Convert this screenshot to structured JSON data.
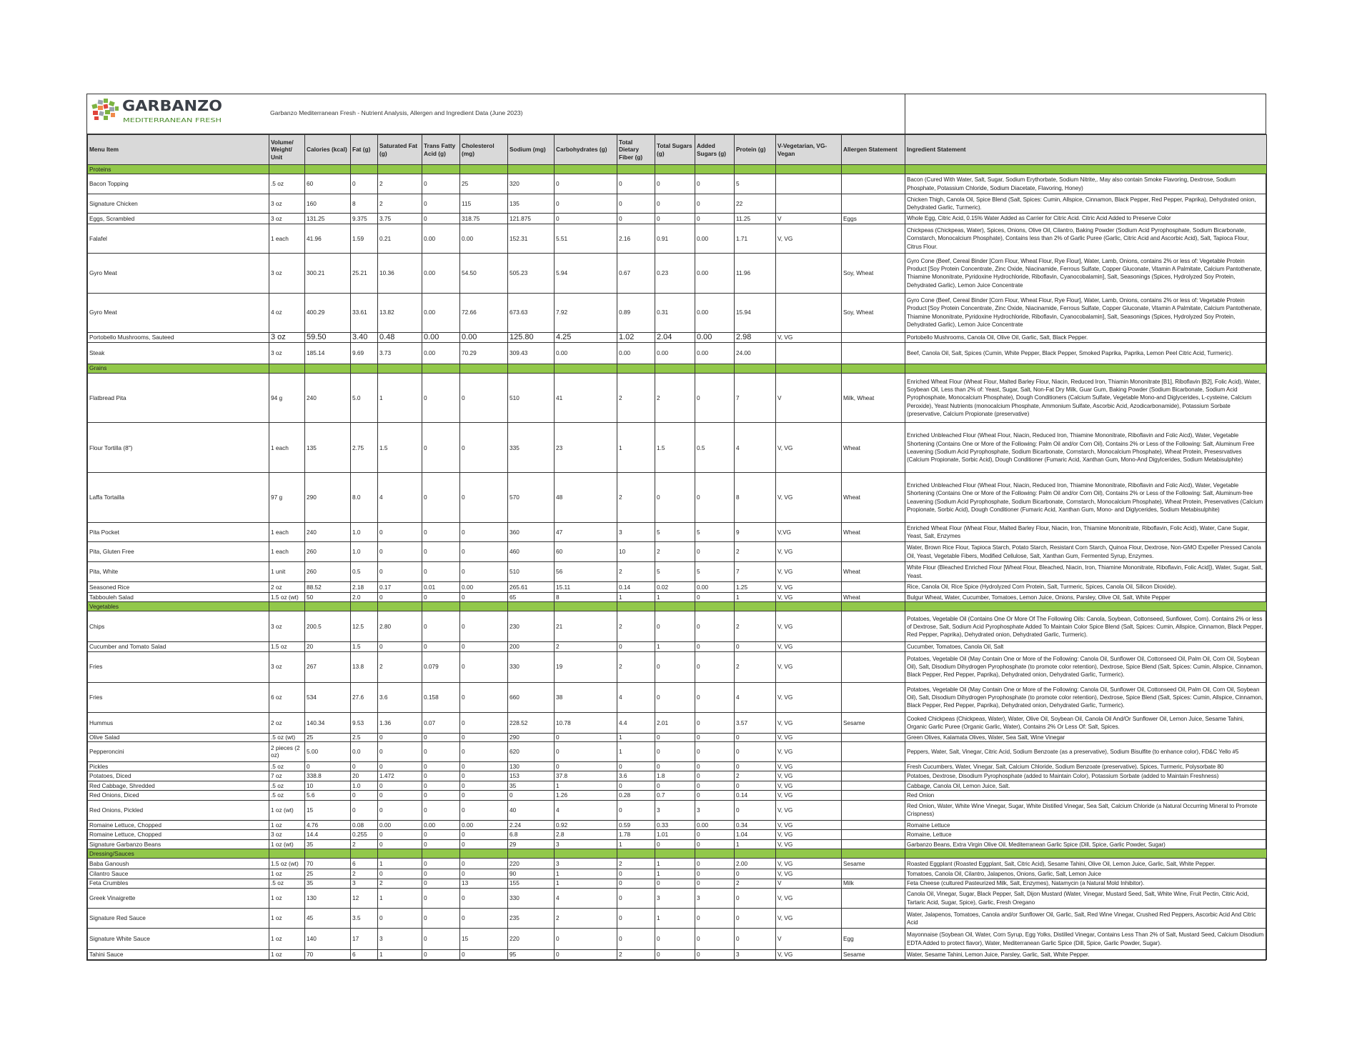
{
  "logo": {
    "brand": "GARBANZO",
    "tagline": "MEDITERRANEAN FRESH",
    "colors": {
      "dark": "#3a3f47",
      "green": "#7cb342",
      "orange": "#f08a4b",
      "red": "#e0453c",
      "gray": "#9aa4ad"
    }
  },
  "document_title": "Garbanzo Mediterranean Fresh - Nutrient Analysis, Allergen and Ingredient Data (June 2023)",
  "colors": {
    "header_bg": "#d9d9d9",
    "section_bg": "#92c84a"
  },
  "columns": [
    "Menu Item",
    "Volume/ Weight/ Unit",
    "Calories (kcal)",
    "Fat (g)",
    "Saturated Fat (g)",
    "Trans Fatty Acid (g)",
    "Cholesterol (mg)",
    "Sodium (mg)",
    "Carbohydrates (g)",
    "Total Dietary Fiber (g)",
    "Total Sugars (g)",
    "Added Sugars (g)",
    "Protein (g)",
    "V-Vegetarian, VG-Vegan",
    "Allergen Statement",
    "Ingredient Statement"
  ],
  "sections": [
    {
      "name": "Proteins",
      "rows": [
        [
          "Bacon Topping",
          ".5 oz",
          "60",
          "0",
          "2",
          "0",
          "25",
          "320",
          "0",
          "0",
          "0",
          "0",
          "5",
          "",
          "",
          "Bacon (Cured With Water, Salt, Sugar, Sodium Erythorbate, Sodium Nitrite,. May also contain Smoke Flavoring, Dextrose, Sodium Phosphate, Potassium Chloride, Sodium Diacetate, Flavoring, Honey)"
        ],
        [
          "Signature Chicken",
          "3 oz",
          "160",
          "8",
          "2",
          "0",
          "115",
          "135",
          "0",
          "0",
          "0",
          "0",
          "22",
          "",
          "",
          "Chicken Thigh, Canola Oil, Spice Blend (Salt, Spices: Cumin, Allspice, Cinnamon, Black Pepper, Red Pepper, Paprika), Dehydrated onion, Dehydrated Garlic, Turmeric)."
        ],
        [
          "Eggs, Scrambled",
          "3 oz",
          "131.25",
          "9.375",
          "3.75",
          "0",
          "318.75",
          "121.875",
          "0",
          "0",
          "0",
          "0",
          "11.25",
          "V",
          "Eggs",
          "Whole Egg, Citric Acid, 0.15% Water Added as Carrier for Citric Acid. Citric Acid Added to Preserve Color"
        ],
        [
          "Falafel",
          "1 each",
          "41.96",
          "1.59",
          "0.21",
          "0.00",
          "0.00",
          "152.31",
          "5.51",
          "2.16",
          "0.91",
          "0.00",
          "1.71",
          "V, VG",
          "",
          "Chickpeas (Chickpeas, Water), Spices, Onions, Olive Oil, Cilantro, Baking Powder (Sodium Acid Pyrophosphate, Sodium Bicarbonate, Cornstarch, Monocalcium Phosphate), Contains less than 2% of Garlic Puree (Garlic, Citric Acid and Ascorbic Acid), Salt, Tapioca Flour, Citrus Flour."
        ],
        [
          "Gyro Meat",
          "3 oz",
          "300.21",
          "25.21",
          "10.36",
          "0.00",
          "54.50",
          "505.23",
          "5.94",
          "0.67",
          "0.23",
          "0.00",
          "11.96",
          "",
          "Soy, Wheat",
          "Gyro Cone (Beef, Cereal Binder [Corn Flour, Wheat Flour, Rye Flour], Water, Lamb, Onions, contains 2% or less of: Vegetable Protein Product [Soy Protein Concentrate, Zinc Oxide, Niacinamide, Ferrous Sulfate, Copper Gluconate, Vitamin A Palmitate, Calcium Pantothenate, Thiamine Mononitrate, Pyridoxine Hydrochloride, Riboflavin, Cyanocobalamin], Salt, Seasonings (Spices, Hydrolyzed Soy Protein, Dehydrated Garlic), Lemon Juice Concentrate"
        ],
        [
          "Gyro Meat",
          "4 oz",
          "400.29",
          "33.61",
          "13.82",
          "0.00",
          "72.66",
          "673.63",
          "7.92",
          "0.89",
          "0.31",
          "0.00",
          "15.94",
          "",
          "Soy, Wheat",
          "Gyro Cone (Beef, Cereal Binder [Corn Flour, Wheat Flour, Rye Flour], Water, Lamb, Onions, contains 2% or less of: Vegetable Protein Product [Soy Protein Concentrate, Zinc Oxide, Niacinamide, Ferrous Sulfate, Copper Gluconate, Vitamin A Palmitate, Calcium Pantothenate, Thiamine Mononitrate, Pyridoxine Hydrochloride, Riboflavin, Cyanocobalamin], Salt, Seasonings (Spices, Hydrolyzed Soy Protein, Dehydrated Garlic), Lemon Juice Concentrate"
        ],
        [
          "Portobello Mushrooms, Sauteed",
          "3 oz",
          "59.50",
          "3.40",
          "0.48",
          "0.00",
          "0.00",
          "125.80",
          "4.25",
          "1.02",
          "2.04",
          "0.00",
          "2.98",
          "V, VG",
          "",
          "Portobello Mushrooms, Canola Oil, Olive Oil, Garlic, Salt, Black Pepper."
        ],
        [
          "Steak",
          "3 oz",
          "185.14",
          "9.69",
          "3.73",
          "0.00",
          "70.29",
          "309.43",
          "0.00",
          "0.00",
          "0.00",
          "0.00",
          "24.00",
          "",
          "",
          "Beef, Canola Oil, Salt, Spices (Cumin, White Pepper, Black Pepper, Smoked Paprika, Paprika, Lemon Peel Citric Acid, Turmeric)."
        ]
      ]
    },
    {
      "name": "Grains",
      "rows": [
        [
          "Flatbread Pita",
          "94 g",
          "240",
          "5.0",
          "1",
          "0",
          "0",
          "510",
          "41",
          "2",
          "2",
          "0",
          "7",
          "V",
          "Milk, Wheat",
          "Enriched Wheat Flour (Wheat Flour, Malted Barley Flour, Niacin, Reduced Iron, Thiamin Mononitrate [B1], Riboflavin [B2], Folic Acid), Water, Soybean Oil, Less than 2% of: Yeast, Sugar, Salt, Non-Fat Dry Milk, Guar Gum, Baking Powder (Sodium Bicarbonate, Sodium Acid Pyrophosphate, Monocalcium Phosphate), Dough Conditioners (Calcium Sulfate, Vegetable Mono-and Diglycerides, L-cysteine, Calcium Peroxide), Yeast Nutrients (monocalcium Phosphate, Ammonium Sulfate, Ascorbic Acid, Azodicarbonamide), Potassium Sorbate (preservative, Calcium Propionate (preservative)"
        ],
        [
          "Flour Tortilla (8\")",
          "1 each",
          "135",
          "2.75",
          "1.5",
          "0",
          "0",
          "335",
          "23",
          "1",
          "1.5",
          "0.5",
          "4",
          "V, VG",
          "Wheat",
          "Enriched Unbleached Flour (Wheat Flour, Niacin, Reduced Iron, Thiamine Mononitrate, Riboflavin and Folic Aicd), Water, Vegetable Shortening (Contains One or More of the Following: Palm Oil and/or Corn Oil), Contains 2% or Less of the Following: Salt, Aluminum Free Leavening (Sodium Acid Pyrophosphate, Sodium Bicarbonate, Cornstarch, Monocalcium Phosphate), Wheat Protein, Presesrvatives (Calcium Propionate, Sorbic Acid), Dough Conditioner (Fumaric Acid, Xanthan Gum, Mono-And Digylcerides, Sodium Metabisulphite)"
        ],
        [
          "Laffa Tortailla",
          "97 g",
          "290",
          "8.0",
          "4",
          "0",
          "0",
          "570",
          "48",
          "2",
          "0",
          "0",
          "8",
          "V, VG",
          "Wheat",
          "Enriched Unbleached Flour (Wheat Flour, Niacin, Reduced Iron, Thiamine Mononitrate, Riboflavin and Folic Aicd), Water, Vegetable Shortening (Contains One or More of the Following: Palm Oil and/or Corn Oil), Contains 2% or Less of the Following: Salt, Aluminum-free Leavening (Sodium Acid Pyrophosphate, Sodium Bicarbonate, Cornstarch, Monocalcium Phosphate), Wheat Protein, Preservatives (Calcium Propionate, Sorbic Acid), Dough Conditioner (Fumaric Acid, Xanthan Gum, Mono- and Diglycerides, Sodium Metabisulphite)"
        ],
        [
          "Pita Pocket",
          "1 each",
          "240",
          "1.0",
          "0",
          "0",
          "0",
          "360",
          "47",
          "3",
          "5",
          "5",
          "9",
          "V,VG",
          "Wheat",
          "Enriched Wheat Flour (Wheat Flour, Malted Barley Flour, Niacin, Iron, Thiamine Mononitrate, Riboflavin, Folic Acid), Water, Cane Sugar, Yeast, Salt, Enzymes"
        ],
        [
          "Pita, Gluten Free",
          "1 each",
          "260",
          "1.0",
          "0",
          "0",
          "0",
          "460",
          "60",
          "10",
          "2",
          "0",
          "2",
          "V, VG",
          "",
          "Water, Brown Rice Flour, Tapioca Starch, Potato Starch, Resistant Corn Starch, Quinoa Flour, Dextrose, Non-GMO Expeller Pressed Canola Oil, Yeast, Vegetable Fibers, Modified Cellulose, Salt, Xanthan Gum, Fermented Syrup, Enzymes."
        ],
        [
          "Pita, White",
          "1 unit",
          "260",
          "0.5",
          "0",
          "0",
          "0",
          "510",
          "56",
          "2",
          "5",
          "5",
          "7",
          "V, VG",
          "Wheat",
          "White Flour (Bleached Enriched Flour [Wheat Flour, Bleached, Niacin, Iron, Thiamine Mononitrate, Riboflavin, Folic Acid]), Water, Sugar, Salt, Yeast."
        ],
        [
          "Seasoned Rice",
          "2 oz",
          "88.52",
          "2.18",
          "0.17",
          "0.01",
          "0.00",
          "265.61",
          "15.11",
          "0.14",
          "0.02",
          "0.00",
          "1.25",
          "V, VG",
          "",
          "Rice, Canola Oil, Rice Spice (Hydrolyzed Corn Protein, Salt, Turmeric, Spices, Canola Oil, Silicon Dioxide)."
        ],
        [
          "Tabbouleh Salad",
          "1.5 oz (wt)",
          "50",
          "2.0",
          "0",
          "0",
          "0",
          "65",
          "8",
          "1",
          "1",
          "0",
          "1",
          "V, VG",
          "Wheat",
          "Bulgur Wheat, Water, Cucumber, Tomatoes, Lemon Juice, Onions, Parsley, Olive Oil, Salt, White Pepper"
        ]
      ]
    },
    {
      "name": "Vegetables",
      "rows": [
        [
          "Chips",
          "3 oz",
          "200.5",
          "12.5",
          "2.80",
          "0",
          "0",
          "230",
          "21",
          "2",
          "0",
          "0",
          "2",
          "V, VG",
          "",
          "Potatoes, Vegetable Oil (Contains One Or More Of The Following Oils: Canola, Soybean, Cottonseed, Sunflower, Corn). Contains 2% or less of Dextrose, Salt, Sodium Acid Pyrophosphate Added To Maintain Color Spice Blend (Salt, Spices: Cumin, Allspice, Cinnamon, Black Pepper, Red Pepper, Paprika), Dehydrated onion, Dehydrated Garlic, Turmeric)."
        ],
        [
          "Cucumber and Tomato Salad",
          "1.5 oz",
          "20",
          "1.5",
          "0",
          "0",
          "0",
          "200",
          "2",
          "0",
          "1",
          "0",
          "0",
          "V, VG",
          "",
          "Cucumber, Tomatoes, Canola Oil, Salt"
        ],
        [
          "Fries",
          "3 oz",
          "267",
          "13.8",
          "2",
          "0.079",
          "0",
          "330",
          "19",
          "2",
          "0",
          "0",
          "2",
          "V, VG",
          "",
          "Potatoes, Vegetable Oil (May Contain One or More of the Following: Canola Oil, Sunflower Oil, Cottonseed Oil, Palm Oil, Corn Oil, Soybean Oil), Salt, Disodium Dihydrogen Pyrophosphate (to promote color retention), Dextrose, Spice Blend (Salt, Spices: Cumin, Allspice, Cinnamon, Black Pepper, Red Pepper, Paprika), Dehydrated onion, Dehydrated Garlic, Turmeric)."
        ],
        [
          "Fries",
          "6 oz",
          "534",
          "27.6",
          "3.6",
          "0.158",
          "0",
          "660",
          "38",
          "4",
          "0",
          "0",
          "4",
          "V, VG",
          "",
          "Potatoes, Vegetable Oil (May Contain One or More of the Following: Canola Oil, Sunflower Oil, Cottonseed Oil, Palm Oil, Corn Oil, Soybean Oil), Salt, Disodium Dihydrogen Pyrophosphate (to promote color retention), Dextrose, Spice Blend (Salt, Spices: Cumin, Allspice, Cinnamon, Black Pepper, Red Pepper, Paprika), Dehydrated onion, Dehydrated Garlic, Turmeric)."
        ],
        [
          "Hummus",
          "2 oz",
          "140.34",
          "9.53",
          "1.36",
          "0.07",
          "0",
          "228.52",
          "10.78",
          "4.4",
          "2.01",
          "0",
          "3.57",
          "V, VG",
          "Sesame",
          "Cooked Chickpeas (Chickpeas, Water), Water, Olive Oil, Soybean Oil, Canola Oil And/Or Sunflower Oil, Lemon Juice, Sesame Tahini, Organic Garlic Puree (Organic Garlic, Water), Contains 2% Or Less Of: Salt, Spices."
        ],
        [
          "Olive Salad",
          ".5 oz (wt)",
          "25",
          "2.5",
          "0",
          "0",
          "0",
          "290",
          "0",
          "1",
          "0",
          "0",
          "0",
          "V, VG",
          "",
          "Green Olives, Kalamata Olives, Water, Sea Salt, Wine Vinegar"
        ],
        [
          "Pepperoncini",
          "2 pieces (2 oz)",
          "5.00",
          "0.0",
          "0",
          "0",
          "0",
          "620",
          "0",
          "1",
          "0",
          "0",
          "0",
          "V, VG",
          "",
          "Peppers, Water, Salt, Vinegar, Citric Acid, Sodium Benzoate (as a preservative), Sodium Bisulfite (to enhance color), FD&C Yello #5"
        ],
        [
          "Pickles",
          ".5 oz",
          "0",
          "0",
          "0",
          "0",
          "0",
          "130",
          "0",
          "0",
          "0",
          "0",
          "0",
          "V, VG",
          "",
          "Fresh Cucumbers, Water, Vinegar, Salt, Calcium Chloride, Sodium Benzoate (preservative), Spices, Turmeric, Polysorbate 80"
        ],
        [
          "Potatoes, Diced",
          "7 oz",
          "338.8",
          "20",
          "1.472",
          "0",
          "0",
          "153",
          "37.8",
          "3.6",
          "1.8",
          "0",
          "2",
          "V, VG",
          "",
          "Potatoes, Dextrose, Disodium Pyrophosphate (added to Maintain Color), Potassium Sorbate (added to Maintain Freshness)"
        ],
        [
          "Red Cabbage, Shredded",
          ".5 oz",
          "10",
          "1.0",
          "0",
          "0",
          "0",
          "35",
          "1",
          "0",
          "0",
          "0",
          "0",
          "V, VG",
          "",
          "Cabbage, Canola Oil, Lemon Juice, Salt."
        ],
        [
          "Red Onions, Diced",
          ".5 oz",
          "5.6",
          "0",
          "0",
          "0",
          "0",
          "0",
          "1.26",
          "0.28",
          "0.7",
          "0",
          "0.14",
          "V, VG",
          "",
          "Red Onion"
        ],
        [
          "Red Onions, Pickled",
          "1 oz (wt)",
          "15",
          "0",
          "0",
          "0",
          "0",
          "40",
          "4",
          "0",
          "3",
          "3",
          "0",
          "V, VG",
          "",
          "Red Onion, Water, White Wine Vinegar, Sugar, White Distilled Vinegar, Sea Salt, Calcium Chloride (a Natural Occurring Mineral to Promote Crispness)"
        ],
        [
          "Romaine Lettuce, Chopped",
          "1 oz",
          "4.76",
          "0.08",
          "0.00",
          "0.00",
          "0.00",
          "2.24",
          "0.92",
          "0.59",
          "0.33",
          "0.00",
          "0.34",
          "V, VG",
          "",
          "Romaine Lettuce"
        ],
        [
          "Romaine Lettuce, Chopped",
          "3 oz",
          "14.4",
          "0.255",
          "0",
          "0",
          "0",
          "6.8",
          "2.8",
          "1.78",
          "1.01",
          "0",
          "1.04",
          "V, VG",
          "",
          "Romaine, Lettuce"
        ],
        [
          "Signature Garbanzo Beans",
          "1 oz (wt)",
          "35",
          "2",
          "0",
          "0",
          "0",
          "29",
          "3",
          "1",
          "0",
          "0",
          "1",
          "V, VG",
          "",
          "Garbanzo Beans, Extra Virgin Olive Oil, Mediterranean Garlic Spice (Dill, Spice, Garlic Powder, Sugar)"
        ]
      ]
    },
    {
      "name": "Dressing/Sauces",
      "rows": [
        [
          "Baba Ganoush",
          "1.5 oz (wt)",
          "70",
          "6",
          "1",
          "0",
          "0",
          "220",
          "3",
          "2",
          "1",
          "0",
          "2.00",
          "V, VG",
          "Sesame",
          "Roasted Eggplant (Roasted Eggplant, Salt, Citric Acid), Sesame Tahini, Olive Oil, Lemon Juice, Garlic, Salt, White Pepper."
        ],
        [
          "Cilantro Sauce",
          "1 oz",
          "25",
          "2",
          "0",
          "0",
          "0",
          "90",
          "1",
          "0",
          "1",
          "0",
          "0",
          "V, VG",
          "",
          "Tomatoes, Canola Oil, Cilantro, Jalapenos, Onions, Garlic, Salt, Lemon Juice"
        ],
        [
          "Feta Crumbles",
          ".5 oz",
          "35",
          "3",
          "2",
          "0",
          "13",
          "155",
          "1",
          "0",
          "0",
          "0",
          "2",
          "V",
          "Milk",
          "Feta Cheese (cultured Pasteurized Milk, Salt, Enzymes), Natamycin (a Natural Mold Inhibitor)."
        ],
        [
          "Greek Vinaigrette",
          "1 oz",
          "130",
          "12",
          "1",
          "0",
          "0",
          "330",
          "4",
          "0",
          "3",
          "3",
          "0",
          "V, VG",
          "",
          "Canola Oil, Vinegar, Sugar, Black Pepper, Salt, Dijon Mustard (Water, Vinegar, Mustard Seed, Salt, White Wine, Fruit Pectin, Citric Acid, Tartaric Acid, Sugar, Spice), Garlic, Fresh Oregano"
        ],
        [
          "Signature Red Sauce",
          "1 oz",
          "45",
          "3.5",
          "0",
          "0",
          "0",
          "235",
          "2",
          "0",
          "1",
          "0",
          "0",
          "V, VG",
          "",
          "Water, Jalapenos, Tomatoes, Canola and/or Sunflower Oil, Garlic, Salt, Red Wine Vinegar, Crushed Red Peppers, Ascorbic Acid And Citric Acid"
        ],
        [
          "Signature White Sauce",
          "1 oz",
          "140",
          "17",
          "3",
          "0",
          "15",
          "220",
          "0",
          "0",
          "0",
          "0",
          "0",
          "V",
          "Egg",
          "Mayonnaise (Soybean Oil, Water, Corn Syrup, Egg Yolks, Distilled Vinegar, Contains Less Than 2% of Salt, Mustard Seed, Calcium Disodium EDTA Added to protect flavor), Water, Mediterranean Garlic Spice (Dill, Spice, Garlic Powder, Sugar)."
        ],
        [
          "Tahini Sauce",
          "1 oz",
          "70",
          "6",
          "1",
          "0",
          "0",
          "95",
          "0",
          "2",
          "0",
          "0",
          "3",
          "V, VG",
          "Sesame",
          "Water, Sesame Tahini, Lemon Juice, Parsley, Garlic, Salt, White Pepper."
        ]
      ]
    }
  ]
}
